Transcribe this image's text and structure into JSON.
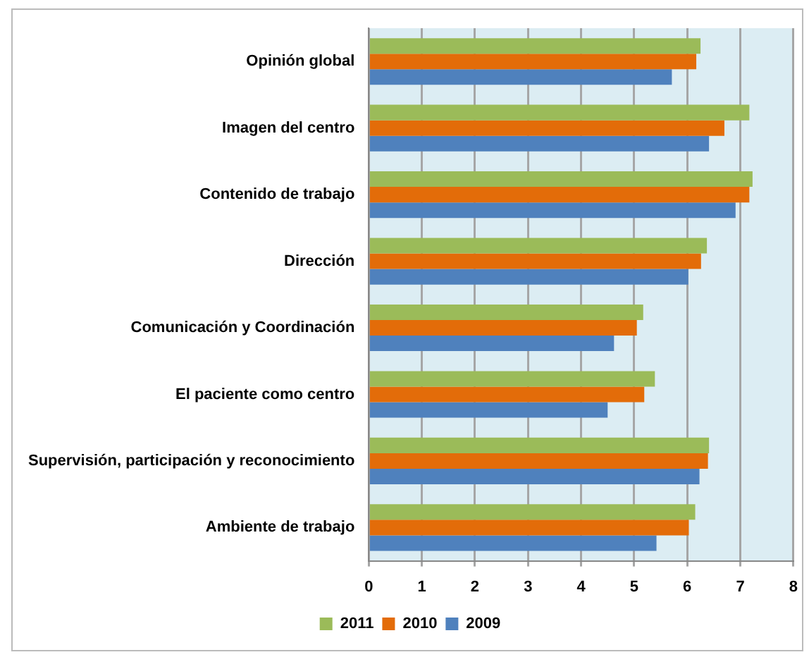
{
  "chart_data": {
    "type": "bar",
    "orientation": "horizontal",
    "categories": [
      "Opinión global",
      "Imagen del centro",
      "Contenido de trabajo",
      "Dirección",
      "Comunicación y Coordinación",
      "El paciente como centro",
      "Supervisión, participación y reconocimiento",
      "Ambiente de trabajo"
    ],
    "series": [
      {
        "name": "2011",
        "color": "#9bbb59",
        "values": [
          6.25,
          7.17,
          7.23,
          6.37,
          5.17,
          5.39,
          6.41,
          6.15
        ]
      },
      {
        "name": "2010",
        "color": "#e36c09",
        "values": [
          6.17,
          6.7,
          7.17,
          6.26,
          5.05,
          5.19,
          6.39,
          6.03
        ]
      },
      {
        "name": "2009",
        "color": "#4f81bd",
        "values": [
          5.71,
          6.41,
          6.91,
          6.02,
          4.62,
          4.5,
          6.23,
          5.42
        ]
      }
    ],
    "xlim": [
      0,
      8
    ],
    "xticks": [
      0,
      1,
      2,
      3,
      4,
      5,
      6,
      7,
      8
    ],
    "grid": "x",
    "legend": "bottom"
  }
}
